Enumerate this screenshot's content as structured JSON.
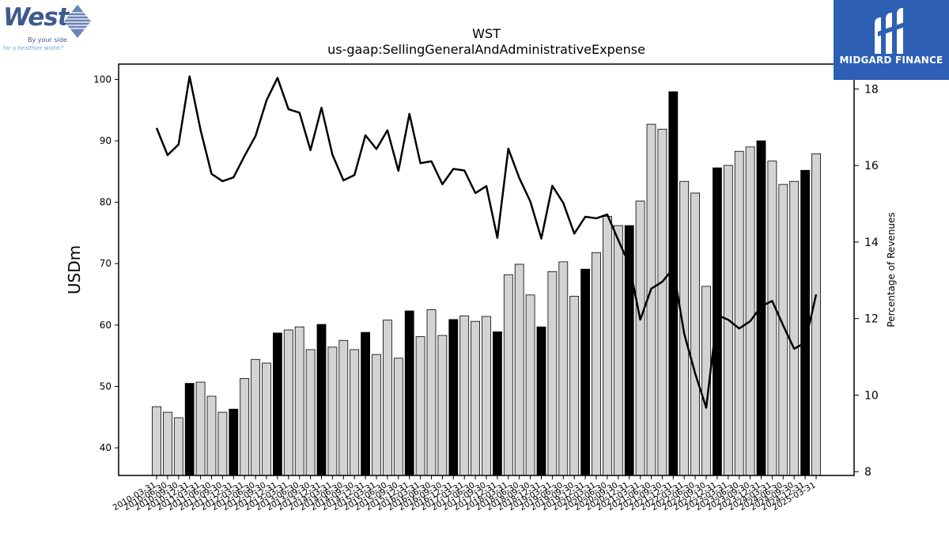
{
  "brand": {
    "company_name": "West",
    "company_tagline_1": "By your side",
    "company_tagline_2": "for a healthier world™",
    "publisher_name": "MIDGARD FINANCE",
    "publisher_bg": "#2d5fb4",
    "company_color": "#3f5a8c"
  },
  "chart_data": {
    "type": "bar",
    "title": "WST",
    "subtitle": "us-gaap:SellingGeneralAndAdministrativeExpense",
    "ylabel": "USDm",
    "y2label": "Percentage of Revenues",
    "xlabel": "",
    "ylim": [
      35.5,
      102.5
    ],
    "y2lim": [
      7.9,
      18.65
    ],
    "yticks": [
      40,
      50,
      60,
      70,
      80,
      90,
      100
    ],
    "y2ticks": [
      8,
      10,
      12,
      14,
      16,
      18
    ],
    "grid": false,
    "legend": "none",
    "bar_color_quarter": "#d3d3d3",
    "bar_color_annual": "#000000",
    "line_color": "#000000",
    "categories": [
      "2010-03-31",
      "2010-06-30",
      "2010-09-30",
      "2010-12-31",
      "2011-03-31",
      "2011-06-30",
      "2011-09-30",
      "2011-12-31",
      "2012-03-31",
      "2012-06-30",
      "2012-09-30",
      "2012-12-31",
      "2013-03-31",
      "2013-06-30",
      "2013-09-30",
      "2013-12-31",
      "2014-03-31",
      "2014-06-30",
      "2014-09-30",
      "2014-12-31",
      "2015-03-31",
      "2015-06-30",
      "2015-09-30",
      "2015-12-31",
      "2016-03-31",
      "2016-06-30",
      "2016-09-30",
      "2016-12-31",
      "2017-03-31",
      "2017-06-30",
      "2017-09-30",
      "2017-12-31",
      "2018-03-31",
      "2018-06-30",
      "2018-09-30",
      "2018-12-31",
      "2019-03-31",
      "2019-06-30",
      "2019-09-30",
      "2019-12-31",
      "2020-03-31",
      "2020-06-30",
      "2020-09-30",
      "2020-12-31",
      "2021-03-31",
      "2021-06-30",
      "2021-09-30",
      "2021-12-31",
      "2022-03-31",
      "2022-06-30",
      "2022-09-30",
      "2022-12-31",
      "2023-03-31",
      "2023-06-30",
      "2023-09-30",
      "2023-12-31",
      "2024-03-31",
      "2024-06-30",
      "2024-09-30",
      "2024-12-31",
      "2025-03-31"
    ],
    "series": [
      {
        "kind": "bar",
        "values": [
          46.7,
          45.8,
          44.9,
          50.5,
          50.7,
          48.4,
          45.8,
          46.3,
          51.3,
          54.4,
          53.8,
          58.7,
          59.2,
          59.7,
          56.0,
          60.1,
          56.4,
          57.5,
          56.0,
          58.8,
          55.2,
          60.8,
          54.6,
          62.3,
          58.1,
          62.5,
          58.3,
          60.9,
          61.5,
          60.6,
          61.4,
          58.9,
          68.2,
          69.9,
          64.9,
          59.7,
          68.7,
          70.3,
          64.7,
          69.1,
          71.8,
          77.7,
          76.2,
          76.2,
          80.2,
          92.7,
          91.9,
          98.0,
          83.4,
          81.5,
          66.3,
          85.6,
          86.0,
          88.3,
          89.0,
          90.0,
          86.7,
          82.9,
          83.4,
          85.2,
          87.9
        ],
        "annual": [
          false,
          false,
          false,
          true,
          false,
          false,
          false,
          true,
          false,
          false,
          false,
          true,
          false,
          false,
          false,
          true,
          false,
          false,
          false,
          true,
          false,
          false,
          false,
          true,
          false,
          false,
          false,
          true,
          false,
          false,
          false,
          true,
          false,
          false,
          false,
          true,
          false,
          false,
          false,
          true,
          false,
          false,
          false,
          true,
          false,
          false,
          false,
          true,
          false,
          false,
          false,
          true,
          false,
          false,
          false,
          true,
          false,
          false,
          false,
          true,
          false
        ]
      },
      {
        "kind": "line",
        "axis": "right",
        "values": [
          16.98,
          16.27,
          16.55,
          18.33,
          16.93,
          15.78,
          15.59,
          15.69,
          16.25,
          16.77,
          17.7,
          18.29,
          17.47,
          17.38,
          16.4,
          17.51,
          16.28,
          15.61,
          15.75,
          16.79,
          16.43,
          16.92,
          15.86,
          17.35,
          16.06,
          16.11,
          15.51,
          15.91,
          15.87,
          15.28,
          15.46,
          14.11,
          16.44,
          15.67,
          15.06,
          14.09,
          15.47,
          15.02,
          14.22,
          14.66,
          14.62,
          14.72,
          14.05,
          13.41,
          11.97,
          12.78,
          12.96,
          13.31,
          11.6,
          10.56,
          9.67,
          12.09,
          11.97,
          11.74,
          11.93,
          12.32,
          12.46,
          11.82,
          11.21,
          11.37,
          12.63
        ]
      }
    ]
  }
}
